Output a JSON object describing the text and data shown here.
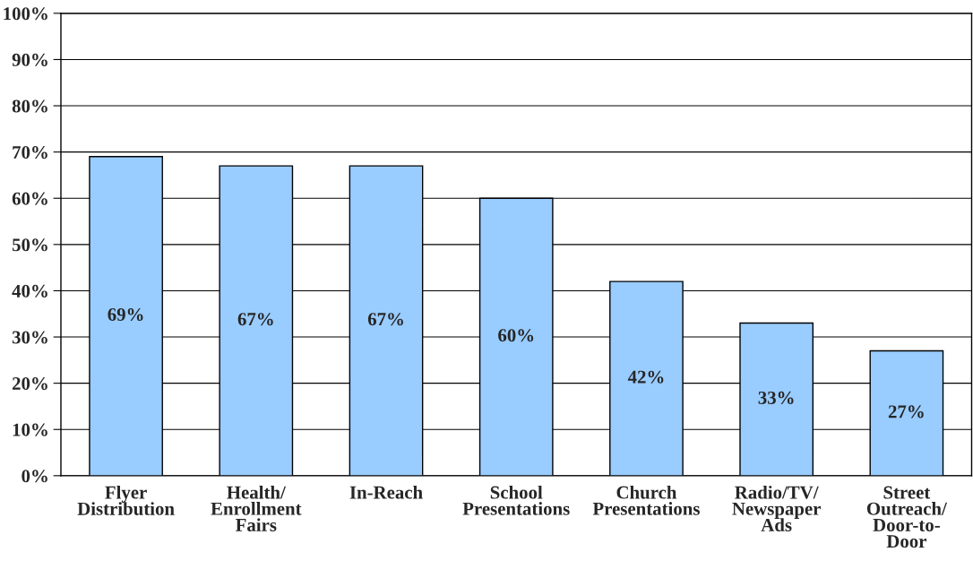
{
  "chart_data": {
    "type": "bar",
    "categories": [
      "Flyer\nDistribution",
      "Health/\nEnrollment\nFairs",
      "In-Reach",
      "School\nPresentations",
      "Church\nPresentations",
      "Radio/TV/\nNewspaper\nAds",
      "Street\nOutreach/\nDoor-to-\nDoor"
    ],
    "values": [
      69,
      67,
      67,
      60,
      42,
      33,
      27
    ],
    "value_labels": [
      "69%",
      "67%",
      "67%",
      "60%",
      "42%",
      "33%",
      "27%"
    ],
    "color": "#99ccff",
    "ylim": [
      0,
      100
    ],
    "yticks": [
      {
        "value": 0,
        "label": "0%"
      },
      {
        "value": 10,
        "label": "10%"
      },
      {
        "value": 20,
        "label": "20%"
      },
      {
        "value": 30,
        "label": "30%"
      },
      {
        "value": 40,
        "label": "40%"
      },
      {
        "value": 50,
        "label": "50%"
      },
      {
        "value": 60,
        "label": "60%"
      },
      {
        "value": 70,
        "label": "70%"
      },
      {
        "value": 80,
        "label": "80%"
      },
      {
        "value": 90,
        "label": "90%"
      },
      {
        "value": 100,
        "label": "100%"
      }
    ],
    "grid": "y",
    "legend": false
  }
}
